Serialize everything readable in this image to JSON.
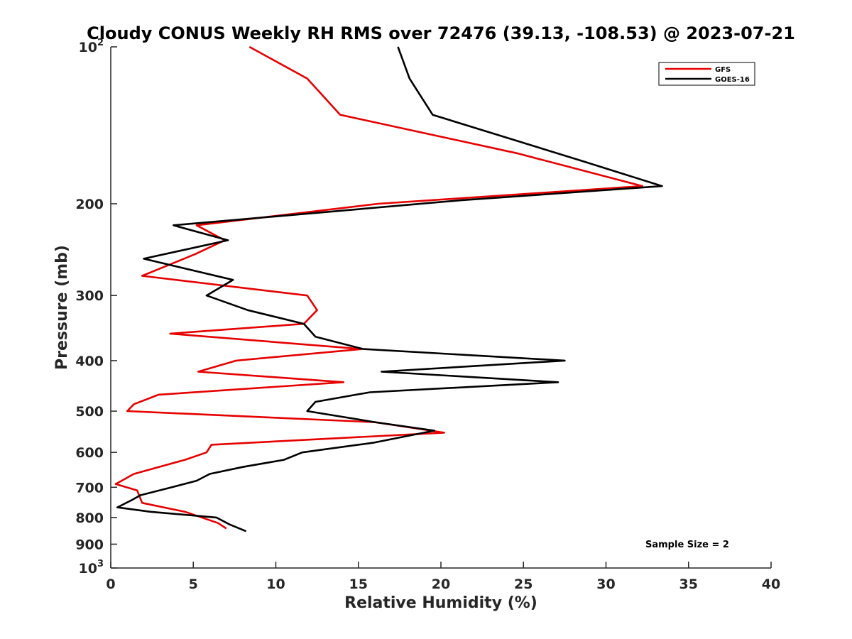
{
  "chart_data": {
    "type": "line",
    "title": "Cloudy CONUS Weekly RH RMS over 72476 (39.13, -108.53) @ 2023-07-21",
    "xlabel": "Relative Humidity (%)",
    "ylabel": "Pressure (mb)",
    "xlim": [
      0,
      40
    ],
    "ylim": [
      100,
      1000
    ],
    "yscale": "log",
    "y_reversed": true,
    "grid": false,
    "legend_position": "top-right",
    "x_ticks": [
      "0",
      "5",
      "10",
      "15",
      "20",
      "25",
      "30",
      "35",
      "40"
    ],
    "x_tick_values": [
      0,
      5,
      10,
      15,
      20,
      25,
      30,
      35,
      40
    ],
    "y_ticks": [
      {
        "value": 100,
        "base": "10",
        "sup": "2"
      },
      {
        "value": 200,
        "base": "200",
        "sup": ""
      },
      {
        "value": 300,
        "base": "300",
        "sup": ""
      },
      {
        "value": 400,
        "base": "400",
        "sup": ""
      },
      {
        "value": 500,
        "base": "500",
        "sup": ""
      },
      {
        "value": 600,
        "base": "600",
        "sup": ""
      },
      {
        "value": 700,
        "base": "700",
        "sup": ""
      },
      {
        "value": 800,
        "base": "800",
        "sup": ""
      },
      {
        "value": 900,
        "base": "900",
        "sup": ""
      },
      {
        "value": 1000,
        "base": "10",
        "sup": "3"
      }
    ],
    "series": [
      {
        "name": "GFS",
        "color": "#e60000",
        "points": [
          [
            8.4,
            100
          ],
          [
            11.9,
            115
          ],
          [
            13.9,
            135
          ],
          [
            24.6,
            160
          ],
          [
            32.2,
            185
          ],
          [
            16.2,
            200
          ],
          [
            5.2,
            220
          ],
          [
            6.9,
            235
          ],
          [
            5.1,
            250
          ],
          [
            1.9,
            275
          ],
          [
            11.9,
            300
          ],
          [
            12.5,
            320
          ],
          [
            11.7,
            340
          ],
          [
            3.6,
            355
          ],
          [
            15.2,
            380
          ],
          [
            7.6,
            400
          ],
          [
            5.3,
            420
          ],
          [
            14.1,
            440
          ],
          [
            2.9,
            465
          ],
          [
            1.4,
            485
          ],
          [
            1.0,
            500
          ],
          [
            16.0,
            525
          ],
          [
            20.2,
            550
          ],
          [
            6.1,
            580
          ],
          [
            5.8,
            600
          ],
          [
            4.5,
            620
          ],
          [
            1.4,
            660
          ],
          [
            0.3,
            690
          ],
          [
            1.6,
            710
          ],
          [
            1.9,
            750
          ],
          [
            4.5,
            780
          ],
          [
            6.5,
            820
          ],
          [
            7.0,
            840
          ]
        ]
      },
      {
        "name": "GOES-16",
        "color": "#000000",
        "points": [
          [
            17.4,
            100
          ],
          [
            18.1,
            115
          ],
          [
            19.5,
            135
          ],
          [
            28.4,
            165
          ],
          [
            33.4,
            185
          ],
          [
            21.2,
            197
          ],
          [
            3.8,
            220
          ],
          [
            7.1,
            235
          ],
          [
            2.0,
            255
          ],
          [
            7.4,
            280
          ],
          [
            5.8,
            300
          ],
          [
            8.3,
            320
          ],
          [
            11.7,
            340
          ],
          [
            12.4,
            360
          ],
          [
            15.3,
            380
          ],
          [
            27.5,
            400
          ],
          [
            16.4,
            420
          ],
          [
            27.1,
            440
          ],
          [
            15.7,
            460
          ],
          [
            12.4,
            480
          ],
          [
            11.9,
            500
          ],
          [
            16.0,
            525
          ],
          [
            19.6,
            545
          ],
          [
            15.9,
            575
          ],
          [
            11.6,
            600
          ],
          [
            10.5,
            620
          ],
          [
            8.0,
            640
          ],
          [
            6.0,
            660
          ],
          [
            5.2,
            680
          ],
          [
            3.7,
            700
          ],
          [
            1.8,
            725
          ],
          [
            1.3,
            740
          ],
          [
            0.4,
            765
          ],
          [
            2.4,
            780
          ],
          [
            6.4,
            800
          ],
          [
            7.2,
            825
          ],
          [
            8.2,
            850
          ]
        ]
      }
    ],
    "annotations": [
      "Sample Size = 2"
    ]
  }
}
